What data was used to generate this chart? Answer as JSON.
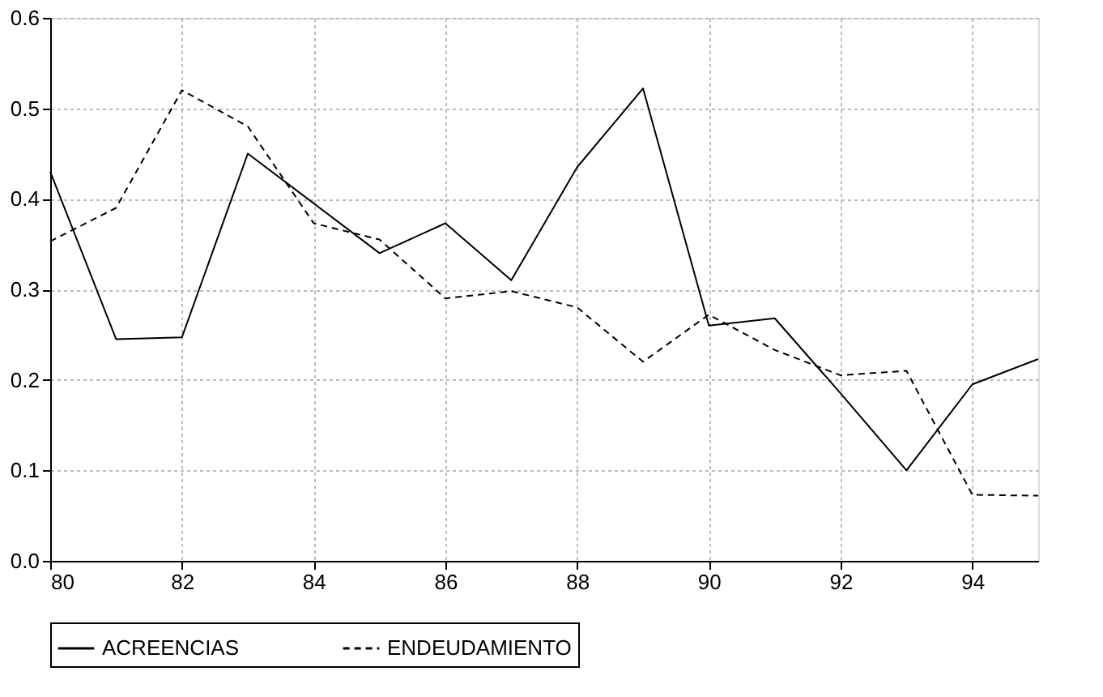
{
  "chart_data": {
    "type": "line",
    "x": [
      80,
      81,
      82,
      83,
      84,
      85,
      86,
      87,
      88,
      89,
      90,
      91,
      92,
      93,
      94,
      95
    ],
    "series": [
      {
        "name": "ACREENCIAS",
        "color": "#000000",
        "line_style": "solid",
        "values": [
          0.43,
          0.245,
          0.247,
          0.45,
          0.395,
          0.34,
          0.373,
          0.31,
          0.435,
          0.522,
          0.26,
          0.268,
          0.185,
          0.1,
          0.195,
          0.223
        ]
      },
      {
        "name": "ENDEUDAMIENTO",
        "color": "#000000",
        "line_style": "dashed",
        "values": [
          0.353,
          0.39,
          0.52,
          0.48,
          0.373,
          0.355,
          0.29,
          0.298,
          0.28,
          0.22,
          0.272,
          0.233,
          0.205,
          0.21,
          0.073,
          0.072
        ]
      }
    ],
    "xlim": [
      80,
      95
    ],
    "xticks": [
      80,
      82,
      84,
      86,
      88,
      90,
      92,
      94
    ],
    "ylim": [
      0,
      0.6
    ],
    "yticks": [
      {
        "value": 0,
        "label": "0.0"
      },
      {
        "value": 0.1,
        "label": "0.1"
      },
      {
        "value": 0.2,
        "label": "0.2"
      },
      {
        "value": 0.3,
        "label": "0.3"
      },
      {
        "value": 0.4,
        "label": "0.4"
      },
      {
        "value": 0.5,
        "label": "0.5"
      },
      {
        "value": 0.6,
        "label": "0.6"
      }
    ],
    "grid": true,
    "legend": "bottom",
    "marker": "none"
  }
}
